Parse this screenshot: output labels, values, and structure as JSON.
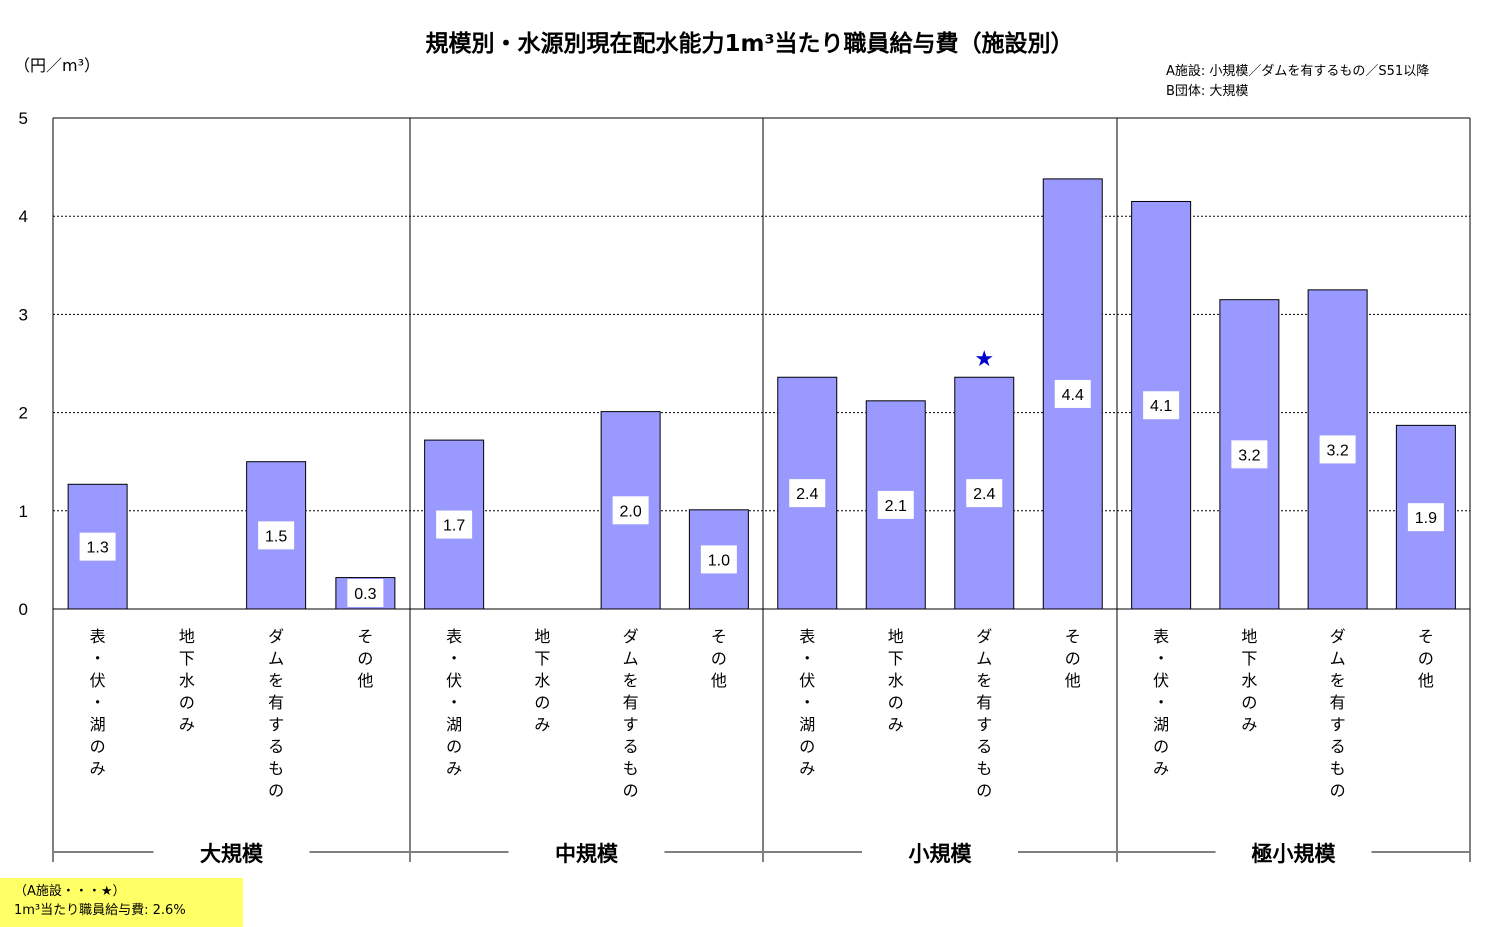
{
  "title": "規模別・水源別現在配水能力1m³当たり職員給与費（施設別）",
  "unit": "（円／m³）",
  "legend": {
    "line1": "A施設: 小規模／ダムを有するもの／S51以降",
    "line2": "B団体: 大規模"
  },
  "note": {
    "line1": "（A施設・・・★）",
    "line2": "1m³当たり職員給与費: 2.6%"
  },
  "colors": {
    "bar": "#9999ff",
    "bar_stroke": "#000000",
    "star": "#0000cc"
  },
  "chart_data": {
    "type": "bar",
    "ylim": [
      0,
      5
    ],
    "yticks": [
      "0",
      "1",
      "2",
      "3",
      "4",
      "5"
    ],
    "grid": "dashed-horizontal",
    "groups": [
      {
        "name": "大規模",
        "categories": [
          "表・伏・湖のみ",
          "地下水のみ",
          "ダムを有するもの",
          "その他"
        ],
        "values": [
          1.27,
          null,
          1.5,
          0.32
        ],
        "labels": [
          "1.3",
          "",
          "1.5",
          "0.3"
        ]
      },
      {
        "name": "中規模",
        "categories": [
          "表・伏・湖のみ",
          "地下水のみ",
          "ダムを有するもの",
          "その他"
        ],
        "values": [
          1.72,
          null,
          2.01,
          1.01
        ],
        "labels": [
          "1.7",
          "",
          "2.0",
          "1.0"
        ]
      },
      {
        "name": "小規模",
        "categories": [
          "表・伏・湖のみ",
          "地下水のみ",
          "ダムを有するもの",
          "その他"
        ],
        "values": [
          2.36,
          2.12,
          2.36,
          4.38
        ],
        "labels": [
          "2.4",
          "2.1",
          "2.4",
          "4.4"
        ]
      },
      {
        "name": "極小規模",
        "categories": [
          "表・伏・湖のみ",
          "地下水のみ",
          "ダムを有するもの",
          "その他"
        ],
        "values": [
          4.15,
          3.15,
          3.25,
          1.87
        ],
        "labels": [
          "4.1",
          "3.2",
          "3.2",
          "1.9"
        ]
      }
    ],
    "marker": {
      "symbol": "★",
      "group": 2,
      "category": 2
    }
  }
}
